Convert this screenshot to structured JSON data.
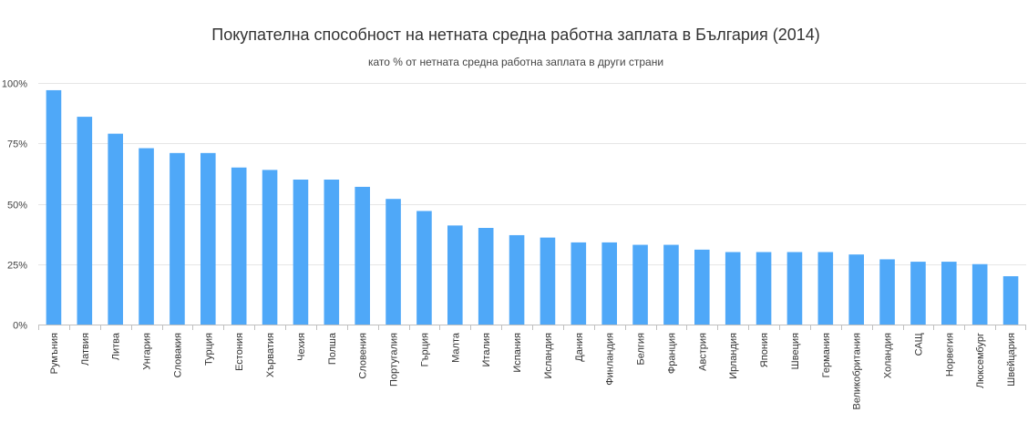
{
  "chart_data": {
    "type": "bar",
    "title": "Покупателна способност на нетната средна работна заплата в България (2014)",
    "subtitle": "като % от нетната средна работна заплата в други страни",
    "xlabel": "",
    "ylabel": "",
    "ylim": [
      0,
      100
    ],
    "y_ticks": [
      0,
      25,
      50,
      75,
      100
    ],
    "y_tick_labels": [
      "0%",
      "25%",
      "50%",
      "75%",
      "100%"
    ],
    "grid": true,
    "legend": "none",
    "colors": {
      "bar": "#4FA8F8"
    },
    "categories": [
      "Румъния",
      "Латвия",
      "Литва",
      "Унгария",
      "Словакия",
      "Турция",
      "Естония",
      "Хърватия",
      "Чехия",
      "Полша",
      "Словения",
      "Португалия",
      "Гърция",
      "Малта",
      "Италия",
      "Испания",
      "Исландия",
      "Дания",
      "Финландия",
      "Белгия",
      "Франция",
      "Австрия",
      "Ирландия",
      "Япония",
      "Швеция",
      "Германия",
      "Великобритания",
      "Холандия",
      "САЩ",
      "Норвегия",
      "Люксембург",
      "Швейцария"
    ],
    "values": [
      97,
      86,
      79,
      73,
      71,
      71,
      65,
      64,
      60,
      60,
      57,
      52,
      47,
      41,
      40,
      37,
      36,
      34,
      34,
      33,
      33,
      31,
      30,
      30,
      30,
      30,
      29,
      27,
      26,
      26,
      25,
      20
    ]
  }
}
